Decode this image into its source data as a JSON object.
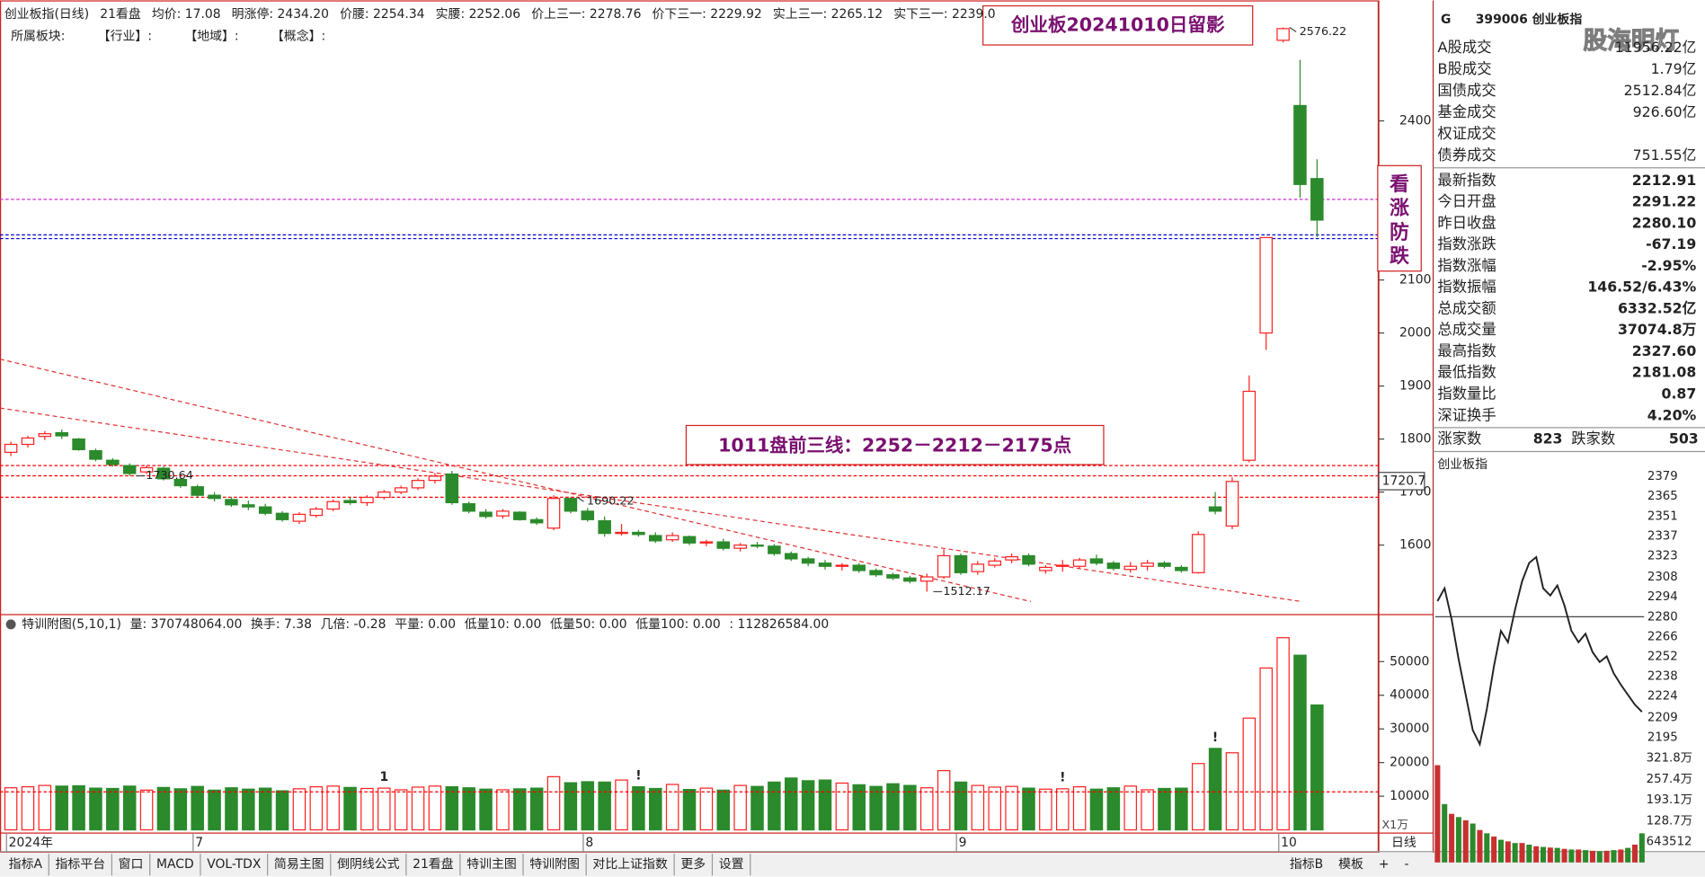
{
  "header": {
    "items": [
      {
        "text": "创业板指(日线)",
        "color": "#222"
      },
      {
        "text": "21看盘",
        "color": "#222"
      },
      {
        "text": "均价: 17.08",
        "color": "#222"
      },
      {
        "text": "明涨停: 2434.20",
        "color": "#e00000"
      },
      {
        "text": "价腰: 2254.34",
        "color": "#8b008b"
      },
      {
        "text": "实腰: 2252.06",
        "color": "#e00000"
      },
      {
        "text": "价上三一: 2278.76",
        "color": "#109010"
      },
      {
        "text": "价下三一: 2229.92",
        "color": "#00c8c8"
      },
      {
        "text": "实上三一: 2265.12",
        "color": "#222"
      },
      {
        "text": "实下三一: 2239.0",
        "color": "#e00000"
      }
    ],
    "sector_line": [
      "所属板块:",
      "【行业】:",
      "【地域】:",
      "【概念】:"
    ]
  },
  "annotations": {
    "title_box": "创业板20241010日留影",
    "side_box": "看涨防跌",
    "lines_box": "1011盘前三线：2252－2212－2175点",
    "watermark": "股海明灯"
  },
  "volume_header": [
    {
      "text": "特训附图(5,10,1)",
      "color": "#222"
    },
    {
      "text": "量: 370748064.00",
      "color": "#222"
    },
    {
      "text": "换手: 7.38",
      "color": "#e00000"
    },
    {
      "text": "几倍: -0.28",
      "color": "#f0a000"
    },
    {
      "text": "平量: 0.00",
      "color": "#666"
    },
    {
      "text": "低量10: 0.00",
      "color": "#e00000"
    },
    {
      "text": "低量50: 0.00",
      "color": "#0000e0"
    },
    {
      "text": "低量100: 0.00",
      "color": "#e000e0"
    },
    {
      "text": ": 112826584.00",
      "color": "#e00000"
    }
  ],
  "axis_labels": {
    "period": "日线",
    "cross_value": "1720.7",
    "volume_unit": "X1万"
  },
  "info_panel": {
    "prefix": "G",
    "name": "399006 创业板指",
    "rows": [
      {
        "label": "A股成交",
        "value": "11956.22亿"
      },
      {
        "label": "B股成交",
        "value": "1.79亿"
      },
      {
        "label": "国债成交",
        "value": "2512.84亿"
      },
      {
        "label": "基金成交",
        "value": "926.60亿"
      },
      {
        "label": "权证成交"
      },
      {
        "label": "债券成交",
        "value": "751.55亿"
      }
    ],
    "stats": [
      {
        "label": "最新指数",
        "value": "2212.91",
        "color": "#109010"
      },
      {
        "label": "今日开盘",
        "value": "2291.22",
        "color": "#e00000"
      },
      {
        "label": "昨日收盘",
        "value": "2280.10",
        "color": "#222"
      },
      {
        "label": "指数涨跌",
        "value": "-67.19",
        "color": "#109010"
      },
      {
        "label": "指数涨幅",
        "value": "-2.95%",
        "color": "#109010"
      },
      {
        "label": "指数振幅",
        "value": "146.52/6.43%",
        "color": "#222"
      },
      {
        "label": "总成交额",
        "value": "6332.52亿",
        "color": "#222"
      },
      {
        "label": "总成交量",
        "value": "37074.8万",
        "color": "#222"
      },
      {
        "label": "最高指数",
        "value": "2327.60",
        "color": "#e00000"
      },
      {
        "label": "最低指数",
        "value": "2181.08",
        "color": "#109010"
      },
      {
        "label": "指数量比",
        "value": "0.87",
        "color": "#109010"
      },
      {
        "label": "深证换手",
        "value": "4.20%",
        "color": "#109010"
      }
    ],
    "breadth": {
      "up_label": "涨家数",
      "up": "823",
      "down_label": "跌家数",
      "down": "503"
    },
    "mini_title": "创业板指"
  },
  "tabs": {
    "left": [
      {
        "text": "指标A"
      },
      {
        "text": "指标平台"
      },
      {
        "text": "窗口"
      },
      {
        "text": "MACD"
      },
      {
        "text": "VOL-TDX"
      },
      {
        "text": "简易主图"
      },
      {
        "text": "倒阴线公式"
      },
      {
        "text": "21看盘"
      },
      {
        "text": "特训主图"
      },
      {
        "text": "特训附图",
        "active": true
      },
      {
        "text": "对比上证指数"
      },
      {
        "text": "更多"
      },
      {
        "text": "设置"
      }
    ],
    "right": [
      {
        "text": "指标B"
      },
      {
        "text": "模板"
      },
      {
        "text": "+"
      },
      {
        "text": "-"
      }
    ]
  },
  "chart_data": [
    {
      "type": "candlestick",
      "up_color": "#ff2020",
      "down_color": "#2b8a2b",
      "categories": [
        "2024年",
        null,
        null,
        null,
        null,
        null,
        null,
        null,
        null,
        null,
        null,
        "7",
        null,
        null,
        null,
        null,
        null,
        null,
        null,
        null,
        null,
        null,
        null,
        null,
        null,
        null,
        null,
        null,
        null,
        null,
        null,
        null,
        null,
        null,
        "8",
        null,
        null,
        null,
        null,
        null,
        null,
        null,
        null,
        null,
        null,
        null,
        null,
        null,
        null,
        null,
        null,
        null,
        null,
        null,
        null,
        null,
        "9",
        null,
        null,
        null,
        null,
        null,
        null,
        null,
        null,
        null,
        null,
        null,
        null,
        null,
        null,
        null,
        null,
        null,
        null,
        "10",
        null,
        null
      ],
      "ohlc": [
        [
          1775,
          1795,
          1768,
          1790
        ],
        [
          1790,
          1806,
          1784,
          1802
        ],
        [
          1805,
          1815,
          1798,
          1810
        ],
        [
          1812,
          1818,
          1800,
          1806
        ],
        [
          1800,
          1802,
          1778,
          1780
        ],
        [
          1778,
          1782,
          1758,
          1762
        ],
        [
          1760,
          1764,
          1748,
          1752
        ],
        [
          1750,
          1754,
          1730.64,
          1735
        ],
        [
          1738,
          1750,
          1734,
          1746
        ],
        [
          1745,
          1748,
          1722,
          1725
        ],
        [
          1724,
          1728,
          1708,
          1712
        ],
        [
          1710,
          1714,
          1690,
          1694
        ],
        [
          1694,
          1700,
          1682,
          1688
        ],
        [
          1686,
          1690,
          1672,
          1676
        ],
        [
          1676,
          1684,
          1666,
          1672
        ],
        [
          1672,
          1678,
          1656,
          1660
        ],
        [
          1660,
          1664,
          1644,
          1648
        ],
        [
          1645,
          1662,
          1640,
          1658
        ],
        [
          1656,
          1672,
          1652,
          1668
        ],
        [
          1668,
          1686,
          1664,
          1682
        ],
        [
          1684,
          1690,
          1676,
          1680
        ],
        [
          1680,
          1694,
          1674,
          1690
        ],
        [
          1690,
          1704,
          1686,
          1700
        ],
        [
          1700,
          1712,
          1696,
          1708
        ],
        [
          1708,
          1726,
          1704,
          1722
        ],
        [
          1722,
          1736,
          1716,
          1730
        ],
        [
          1734,
          1740,
          1676,
          1680
        ],
        [
          1678,
          1682,
          1660,
          1664
        ],
        [
          1662,
          1668,
          1650,
          1654
        ],
        [
          1655,
          1668,
          1650,
          1664
        ],
        [
          1662,
          1664,
          1646,
          1648
        ],
        [
          1648,
          1652,
          1638,
          1642
        ],
        [
          1632,
          1694,
          1628,
          1688
        ],
        [
          1688,
          1690.22,
          1660,
          1664
        ],
        [
          1664,
          1670,
          1644,
          1648
        ],
        [
          1646,
          1654,
          1616,
          1622
        ],
        [
          1622,
          1640,
          1618,
          1624
        ],
        [
          1624,
          1628,
          1616,
          1620
        ],
        [
          1618,
          1624,
          1604,
          1608
        ],
        [
          1610,
          1624,
          1606,
          1618
        ],
        [
          1616,
          1618,
          1600,
          1604
        ],
        [
          1604,
          1610,
          1598,
          1606
        ],
        [
          1606,
          1612,
          1590,
          1594
        ],
        [
          1594,
          1604,
          1588,
          1600
        ],
        [
          1600,
          1606,
          1594,
          1598
        ],
        [
          1598,
          1602,
          1580,
          1584
        ],
        [
          1584,
          1588,
          1570,
          1574
        ],
        [
          1574,
          1578,
          1560,
          1566
        ],
        [
          1566,
          1572,
          1554,
          1560
        ],
        [
          1560,
          1566,
          1552,
          1562
        ],
        [
          1562,
          1566,
          1548,
          1552
        ],
        [
          1552,
          1556,
          1540,
          1544
        ],
        [
          1544,
          1548,
          1534,
          1538
        ],
        [
          1538,
          1542,
          1528,
          1532
        ],
        [
          1532,
          1546,
          1512.17,
          1540
        ],
        [
          1540,
          1592,
          1536,
          1580
        ],
        [
          1580,
          1584,
          1544,
          1548
        ],
        [
          1550,
          1570,
          1544,
          1564
        ],
        [
          1562,
          1576,
          1558,
          1570
        ],
        [
          1572,
          1584,
          1566,
          1578
        ],
        [
          1580,
          1584,
          1560,
          1564
        ],
        [
          1552,
          1562,
          1546,
          1558
        ],
        [
          1560,
          1572,
          1550,
          1562
        ],
        [
          1560,
          1576,
          1556,
          1572
        ],
        [
          1574,
          1582,
          1562,
          1566
        ],
        [
          1566,
          1570,
          1552,
          1556
        ],
        [
          1554,
          1568,
          1548,
          1560
        ],
        [
          1560,
          1572,
          1552,
          1566
        ],
        [
          1566,
          1570,
          1556,
          1560
        ],
        [
          1558,
          1562,
          1548,
          1552
        ],
        [
          1548,
          1626,
          1546,
          1620
        ],
        [
          1672,
          1700,
          1658,
          1664
        ],
        [
          1636,
          1728,
          1630,
          1720
        ],
        [
          1760,
          1920,
          1756,
          1890
        ],
        [
          2000,
          2181,
          1968,
          2180
        ],
        [
          2552,
          2576.22,
          2548,
          2574
        ],
        [
          2429,
          2515,
          2255,
          2280.1
        ],
        [
          2291.22,
          2327.6,
          2181.08,
          2212.91
        ]
      ],
      "ylim": [
        1473,
        2617
      ],
      "yticks": [
        1600,
        1700,
        1800,
        1900,
        2000,
        2100,
        2400
      ],
      "hlines": [
        {
          "value": 2252,
          "color": "#cc33cc"
        },
        {
          "value": 2185,
          "color": "#0000cc"
        },
        {
          "value": 2178,
          "color": "#0000cc"
        },
        {
          "value": 1750,
          "color": "#ff0000"
        },
        {
          "value": 1730.64,
          "color": "#ff0000"
        },
        {
          "value": 1690.22,
          "color": "#ff0000"
        }
      ],
      "cross_value": 1720.7
    },
    {
      "type": "bar",
      "up_color": "#ff2020",
      "down_color": "#2b8a2b",
      "values": [
        12500,
        12800,
        13200,
        13000,
        13100,
        12400,
        12300,
        13000,
        11800,
        12600,
        12200,
        12900,
        11800,
        12500,
        12100,
        12400,
        11600,
        12200,
        12800,
        13000,
        12600,
        12300,
        12400,
        11900,
        12700,
        13000,
        12800,
        12500,
        12100,
        11900,
        12200,
        12400,
        15800,
        14000,
        14300,
        14200,
        14800,
        12800,
        12300,
        13500,
        12000,
        12400,
        11800,
        13200,
        12900,
        14200,
        15400,
        14600,
        14800,
        13900,
        13400,
        12900,
        13700,
        13200,
        12500,
        17600,
        14200,
        13200,
        12700,
        12900,
        12400,
        12100,
        12200,
        12800,
        12100,
        12500,
        13000,
        11900,
        12300,
        12400,
        19700,
        24200,
        22900,
        33200,
        48100,
        57100,
        51900,
        37100
      ],
      "ylim": [
        0,
        63000
      ],
      "yticks": [
        10000,
        20000,
        30000,
        40000,
        50000
      ],
      "hlines": [
        {
          "value": 11300,
          "color": "#ff0000"
        }
      ],
      "marker_labels": [
        "1",
        "!",
        "!",
        "!"
      ]
    },
    {
      "type": "line",
      "color": "#222",
      "baseline": 2280.1,
      "values": [
        2291,
        2300,
        2278,
        2250,
        2225,
        2200,
        2190,
        2215,
        2245,
        2270,
        2262,
        2285,
        2305,
        2318,
        2322,
        2300,
        2295,
        2302,
        2288,
        2270,
        2262,
        2268,
        2255,
        2248,
        2252,
        2240,
        2232,
        2225,
        2218,
        2212.91
      ],
      "ylim": [
        2181,
        2385
      ],
      "yticks": [
        2379,
        2365,
        2351,
        2337,
        2323,
        2308,
        2294,
        2280,
        2266,
        2252,
        2238,
        2224,
        2209,
        2195
      ]
    },
    {
      "type": "bar",
      "color": "#c83030",
      "values": [
        3000000,
        1800000,
        1500000,
        1400000,
        1300000,
        1200000,
        1000000,
        900000,
        800000,
        700000,
        650000,
        600000,
        600000,
        550000,
        500000,
        480000,
        460000,
        450000,
        420000,
        400000,
        400000,
        380000,
        360000,
        350000,
        360000,
        380000,
        400000,
        450000,
        550000,
        900000
      ],
      "ylim": [
        0,
        3218000
      ],
      "yticks": [
        {
          "value": 3218000,
          "label": "321.8万"
        },
        {
          "value": 2574000,
          "label": "257.4万"
        },
        {
          "value": 1931000,
          "label": "193.1万"
        },
        {
          "value": 1287000,
          "label": "128.7万"
        },
        643512
      ]
    }
  ]
}
